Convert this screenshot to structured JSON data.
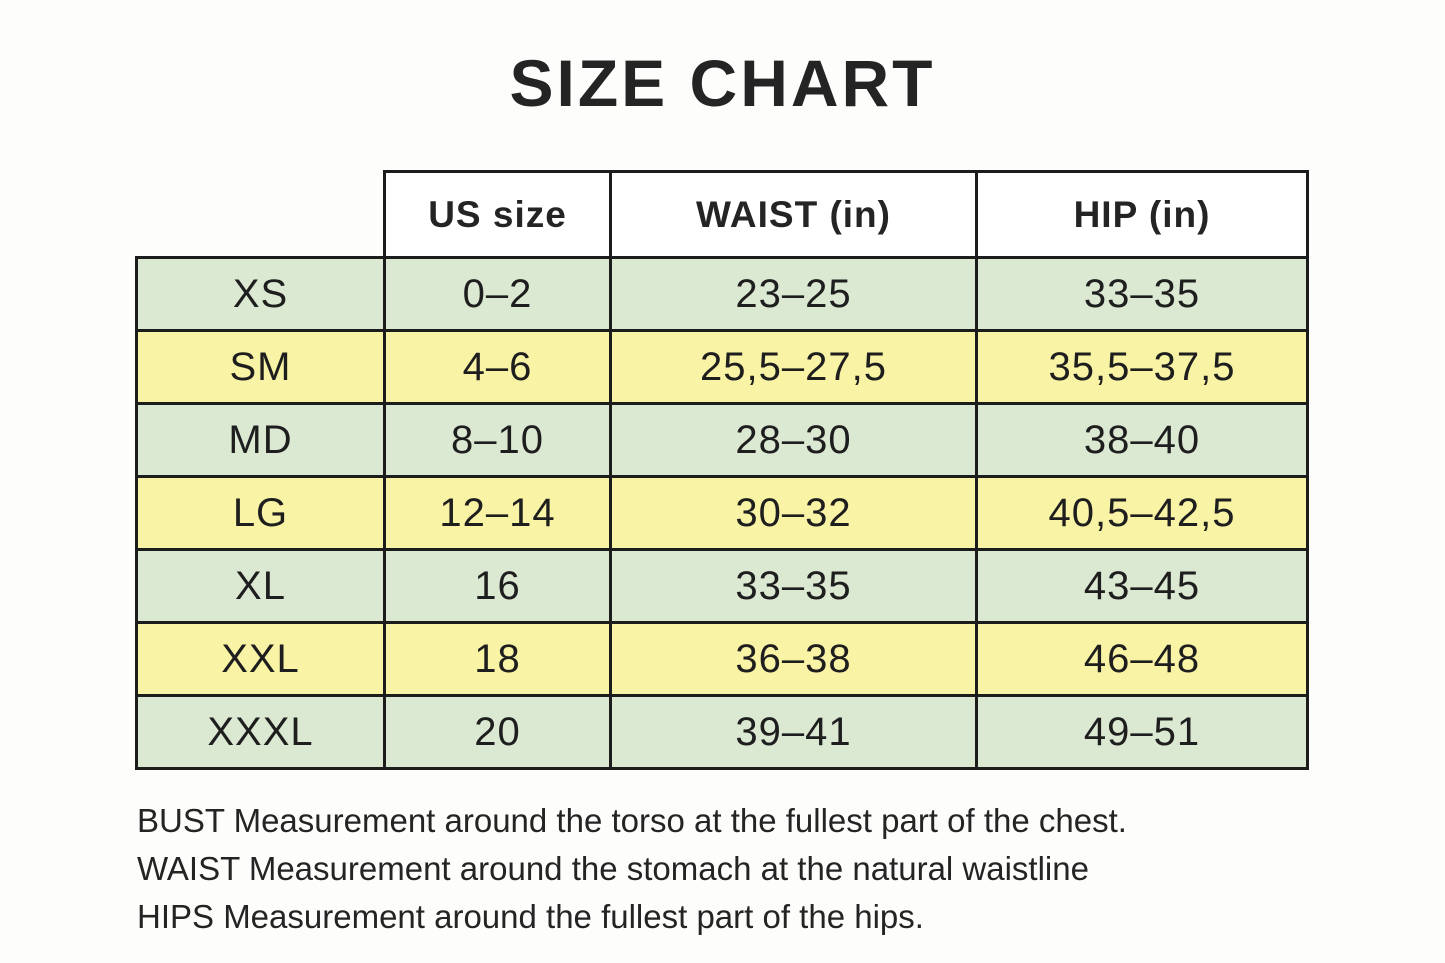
{
  "page": {
    "title": "SIZE CHART"
  },
  "colors": {
    "row_green": "#dbe8d2",
    "row_yellow": "#f9f3a5",
    "header_bg": "#ffffff",
    "border": "#1c1c1c",
    "text": "#242424",
    "background": "#fdfdfb"
  },
  "table": {
    "columns": [
      "",
      "US size",
      "WAIST (in)",
      "HIP (in)"
    ],
    "rows": [
      {
        "size": "XS",
        "us_size": "0–2",
        "waist": "23–25",
        "hip": "33–35",
        "color": "green"
      },
      {
        "size": "SM",
        "us_size": "4–6",
        "waist": "25,5–27,5",
        "hip": "35,5–37,5",
        "color": "yellow"
      },
      {
        "size": "MD",
        "us_size": "8–10",
        "waist": "28–30",
        "hip": "38–40",
        "color": "green"
      },
      {
        "size": "LG",
        "us_size": "12–14",
        "waist": "30–32",
        "hip": "40,5–42,5",
        "color": "yellow"
      },
      {
        "size": "XL",
        "us_size": "16",
        "waist": "33–35",
        "hip": "43–45",
        "color": "green"
      },
      {
        "size": "XXL",
        "us_size": "18",
        "waist": "36–38",
        "hip": "46–48",
        "color": "yellow"
      },
      {
        "size": "XXXL",
        "us_size": "20",
        "waist": "39–41",
        "hip": "49–51",
        "color": "green"
      }
    ]
  },
  "notes": [
    "BUST Measurement around the torso at the fullest part of the chest.",
    "WAIST Measurement around the stomach at the natural waistline",
    "HIPS Measurement around the fullest part of the hips."
  ]
}
